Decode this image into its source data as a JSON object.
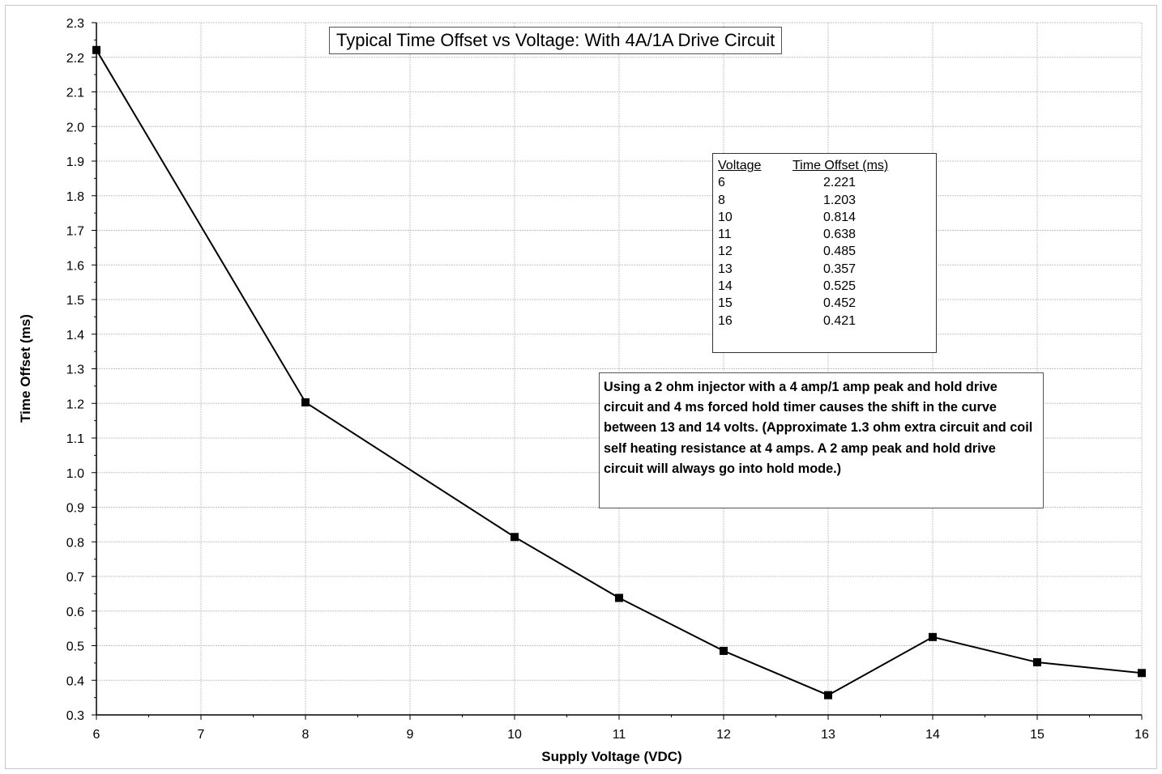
{
  "chart_data": {
    "type": "line",
    "title": "Typical Time Offset vs Voltage: With 4A/1A Drive Circuit",
    "xlabel": "Supply Voltage (VDC)",
    "ylabel": "Time Offset (ms)",
    "xlim": [
      6,
      16
    ],
    "ylim": [
      0.3,
      2.3
    ],
    "x_ticks": [
      "6",
      "7",
      "8",
      "9",
      "10",
      "11",
      "12",
      "13",
      "14",
      "15",
      "16"
    ],
    "y_ticks": [
      "0.3",
      "0.4",
      "0.5",
      "0.6",
      "0.7",
      "0.8",
      "0.9",
      "1.0",
      "1.1",
      "1.2",
      "1.3",
      "1.4",
      "1.5",
      "1.6",
      "1.7",
      "1.8",
      "1.9",
      "2.0",
      "2.1",
      "2.2",
      "2.3"
    ],
    "grid": true,
    "series": [
      {
        "x": [
          6,
          8,
          10,
          11,
          12,
          13,
          14,
          15,
          16
        ],
        "y": [
          2.221,
          1.203,
          0.814,
          0.638,
          0.485,
          0.357,
          0.525,
          0.452,
          0.421
        ]
      }
    ],
    "line_color": "#000000",
    "marker": "square"
  },
  "data_table": {
    "headers": [
      "Voltage",
      "Time Offset (ms)"
    ],
    "rows": [
      [
        "6",
        "2.221"
      ],
      [
        "8",
        "1.203"
      ],
      [
        "10",
        "0.814"
      ],
      [
        "11",
        "0.638"
      ],
      [
        "12",
        "0.485"
      ],
      [
        "13",
        "0.357"
      ],
      [
        "14",
        "0.525"
      ],
      [
        "15",
        "0.452"
      ],
      [
        "16",
        "0.421"
      ]
    ]
  },
  "note": "Using a 2 ohm injector with a 4 amp/1 amp peak and hold drive circuit and 4 ms forced hold timer causes the shift in the curve between 13 and 14 volts.  (Approximate 1.3 ohm extra circuit and coil self heating resistance at 4 amps.   A 2 amp peak and hold drive circuit will always go into hold mode.)"
}
